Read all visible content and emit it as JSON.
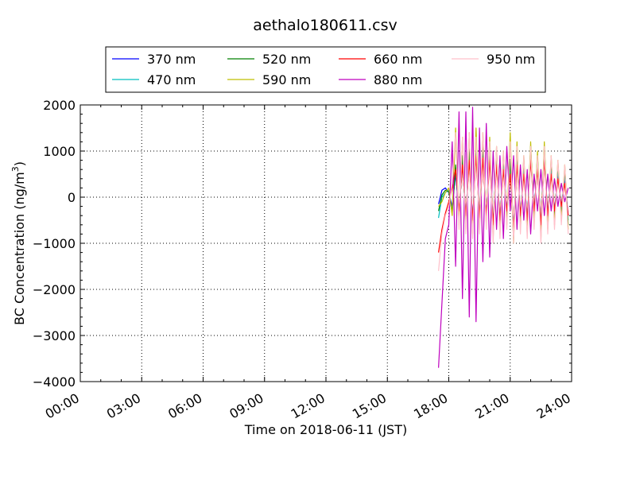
{
  "chart_data": {
    "type": "line",
    "title": "aethalo180611.csv",
    "xlabel": "Time on 2018-06-11 (JST)",
    "ylabel": "BC Concentration (ng/m³)",
    "ylabel_main": "BC Concentration (ng/m",
    "ylabel_sup": "3",
    "ylabel_end": ")",
    "xlim": [
      "2018-06-11 00:00",
      "2018-06-12 00:00"
    ],
    "ylim": [
      -4000,
      2000
    ],
    "x_ticks": [
      {
        "time": "2018-06-11 00:00",
        "label": "00:00"
      },
      {
        "time": "2018-06-11 03:00",
        "label": "03:00"
      },
      {
        "time": "2018-06-11 06:00",
        "label": "06:00"
      },
      {
        "time": "2018-06-11 09:00",
        "label": "09:00"
      },
      {
        "time": "2018-06-11 12:00",
        "label": "12:00"
      },
      {
        "time": "2018-06-11 15:00",
        "label": "15:00"
      },
      {
        "time": "2018-06-11 18:00",
        "label": "18:00"
      },
      {
        "time": "2018-06-11 21:00",
        "label": "21:00"
      },
      {
        "time": "2018-06-12 00:00",
        "label": "24:00"
      }
    ],
    "y_ticks": [
      {
        "value": 2000,
        "label": "2000"
      },
      {
        "value": 1000,
        "label": "1000"
      },
      {
        "value": 0,
        "label": "0"
      },
      {
        "value": -1000,
        "label": "−1000"
      },
      {
        "value": -2000,
        "label": "−2000"
      },
      {
        "value": -3000,
        "label": "−3000"
      },
      {
        "value": -4000,
        "label": "−4000"
      }
    ],
    "grid": true,
    "legend_position": "top-center",
    "series": [
      {
        "name": "370 nm",
        "color": "#0000ff",
        "x": [
          "2018-06-11 17:30",
          "2018-06-11 17:40",
          "2018-06-11 17:50",
          "2018-06-11 18:00",
          "2018-06-11 18:10",
          "2018-06-11 18:20",
          "2018-06-11 18:30",
          "2018-06-11 18:40",
          "2018-06-11 18:50",
          "2018-06-11 19:00",
          "2018-06-11 19:10",
          "2018-06-11 19:20",
          "2018-06-11 19:30",
          "2018-06-11 19:40",
          "2018-06-11 19:50",
          "2018-06-11 20:00",
          "2018-06-11 20:10",
          "2018-06-11 20:20",
          "2018-06-11 20:30",
          "2018-06-11 20:40",
          "2018-06-11 20:50",
          "2018-06-11 21:00",
          "2018-06-11 21:10",
          "2018-06-11 21:20",
          "2018-06-11 21:30",
          "2018-06-11 21:40",
          "2018-06-11 21:50",
          "2018-06-11 22:00",
          "2018-06-11 22:10",
          "2018-06-11 22:20",
          "2018-06-11 22:30",
          "2018-06-11 22:40",
          "2018-06-11 22:50",
          "2018-06-11 23:00",
          "2018-06-11 23:10",
          "2018-06-11 23:20",
          "2018-06-11 23:30",
          "2018-06-11 23:40",
          "2018-06-11 23:50"
        ],
        "values": [
          -150,
          150,
          200,
          100,
          -200,
          500,
          -300,
          700,
          -400,
          900,
          -500,
          1000,
          -450,
          950,
          -400,
          900,
          -600,
          800,
          -500,
          700,
          -300,
          600,
          -700,
          800,
          -400,
          600,
          -500,
          900,
          -300,
          700,
          -600,
          900,
          -400,
          600,
          -300,
          500,
          -200,
          400,
          -400
        ]
      },
      {
        "name": "470 nm",
        "color": "#00bfbf",
        "x": [
          "2018-06-11 17:30",
          "2018-06-11 17:40",
          "2018-06-11 17:50",
          "2018-06-11 18:00",
          "2018-06-11 18:10",
          "2018-06-11 18:20",
          "2018-06-11 18:30",
          "2018-06-11 18:40",
          "2018-06-11 18:50",
          "2018-06-11 19:00",
          "2018-06-11 19:10",
          "2018-06-11 19:20",
          "2018-06-11 19:30",
          "2018-06-11 19:40",
          "2018-06-11 19:50",
          "2018-06-11 20:00",
          "2018-06-11 20:10",
          "2018-06-11 20:20",
          "2018-06-11 20:30",
          "2018-06-11 20:40",
          "2018-06-11 20:50",
          "2018-06-11 21:00",
          "2018-06-11 21:10",
          "2018-06-11 21:20",
          "2018-06-11 21:30",
          "2018-06-11 21:40",
          "2018-06-11 21:50",
          "2018-06-11 22:00",
          "2018-06-11 22:10",
          "2018-06-11 22:20",
          "2018-06-11 22:30",
          "2018-06-11 22:40",
          "2018-06-11 22:50",
          "2018-06-11 23:00",
          "2018-06-11 23:10",
          "2018-06-11 23:20",
          "2018-06-11 23:30",
          "2018-06-11 23:40",
          "2018-06-11 23:50"
        ],
        "values": [
          -450,
          0,
          100,
          150,
          -300,
          600,
          -400,
          800,
          -500,
          950,
          -600,
          1100,
          -500,
          1000,
          -450,
          1000,
          -700,
          900,
          -600,
          800,
          -400,
          700,
          -800,
          900,
          -500,
          700,
          -600,
          1000,
          -400,
          800,
          -700,
          1000,
          -500,
          700,
          -400,
          600,
          -300,
          500,
          -500
        ]
      },
      {
        "name": "520 nm",
        "color": "#008000",
        "x": [
          "2018-06-11 17:30",
          "2018-06-11 17:40",
          "2018-06-11 17:50",
          "2018-06-11 18:00",
          "2018-06-11 18:10",
          "2018-06-11 18:20",
          "2018-06-11 18:30",
          "2018-06-11 18:40",
          "2018-06-11 18:50",
          "2018-06-11 19:00",
          "2018-06-11 19:10",
          "2018-06-11 19:20",
          "2018-06-11 19:30",
          "2018-06-11 19:40",
          "2018-06-11 19:50",
          "2018-06-11 20:00",
          "2018-06-11 20:10",
          "2018-06-11 20:20",
          "2018-06-11 20:30",
          "2018-06-11 20:40",
          "2018-06-11 20:50",
          "2018-06-11 21:00",
          "2018-06-11 21:10",
          "2018-06-11 21:20",
          "2018-06-11 21:30",
          "2018-06-11 21:40",
          "2018-06-11 21:50",
          "2018-06-11 22:00",
          "2018-06-11 22:10",
          "2018-06-11 22:20",
          "2018-06-11 22:30",
          "2018-06-11 22:40",
          "2018-06-11 22:50",
          "2018-06-11 23:00",
          "2018-06-11 23:10",
          "2018-06-11 23:20",
          "2018-06-11 23:30",
          "2018-06-11 23:40",
          "2018-06-11 23:50"
        ],
        "values": [
          -300,
          50,
          150,
          120,
          -350,
          700,
          -500,
          900,
          -600,
          1050,
          -700,
          1200,
          -600,
          1100,
          -500,
          1100,
          -800,
          1000,
          -700,
          900,
          -500,
          800,
          -900,
          1000,
          -600,
          800,
          -700,
          1100,
          -500,
          900,
          -800,
          1100,
          -600,
          800,
          -500,
          700,
          -400,
          600,
          -600
        ]
      },
      {
        "name": "590 nm",
        "color": "#bfbf00",
        "x": [
          "2018-06-11 17:30",
          "2018-06-11 17:40",
          "2018-06-11 17:50",
          "2018-06-11 18:00",
          "2018-06-11 18:10",
          "2018-06-11 18:20",
          "2018-06-11 18:30",
          "2018-06-11 18:40",
          "2018-06-11 18:50",
          "2018-06-11 19:00",
          "2018-06-11 19:10",
          "2018-06-11 19:20",
          "2018-06-11 19:30",
          "2018-06-11 19:40",
          "2018-06-11 19:50",
          "2018-06-11 20:00",
          "2018-06-11 20:10",
          "2018-06-11 20:20",
          "2018-06-11 20:30",
          "2018-06-11 20:40",
          "2018-06-11 20:50",
          "2018-06-11 21:00",
          "2018-06-11 21:10",
          "2018-06-11 21:20",
          "2018-06-11 21:30",
          "2018-06-11 21:40",
          "2018-06-11 21:50",
          "2018-06-11 22:00",
          "2018-06-11 22:10",
          "2018-06-11 22:20",
          "2018-06-11 22:30",
          "2018-06-11 22:40",
          "2018-06-11 22:50",
          "2018-06-11 23:00",
          "2018-06-11 23:10",
          "2018-06-11 23:20",
          "2018-06-11 23:30",
          "2018-06-11 23:40",
          "2018-06-11 23:50"
        ],
        "values": [
          -200,
          -100,
          100,
          200,
          -400,
          1500,
          -600,
          1300,
          -700,
          1400,
          -800,
          1500,
          -700,
          1400,
          -600,
          1300,
          -900,
          1100,
          -800,
          1000,
          -600,
          1400,
          -1000,
          1200,
          -700,
          900,
          -800,
          1200,
          -600,
          1000,
          -900,
          1200,
          -700,
          900,
          -600,
          800,
          -500,
          700,
          -700
        ]
      },
      {
        "name": "660 nm",
        "color": "#ff0000",
        "x": [
          "2018-06-11 17:30",
          "2018-06-11 17:40",
          "2018-06-11 17:50",
          "2018-06-11 18:00",
          "2018-06-11 18:10",
          "2018-06-11 18:20",
          "2018-06-11 18:30",
          "2018-06-11 18:40",
          "2018-06-11 18:50",
          "2018-06-11 19:00",
          "2018-06-11 19:10",
          "2018-06-11 19:20",
          "2018-06-11 19:30",
          "2018-06-11 19:40",
          "2018-06-11 19:50",
          "2018-06-11 20:00",
          "2018-06-11 20:10",
          "2018-06-11 20:20",
          "2018-06-11 20:30",
          "2018-06-11 20:40",
          "2018-06-11 20:50",
          "2018-06-11 21:00",
          "2018-06-11 21:10",
          "2018-06-11 21:20",
          "2018-06-11 21:30",
          "2018-06-11 21:40",
          "2018-06-11 21:50",
          "2018-06-11 22:00",
          "2018-06-11 22:10",
          "2018-06-11 22:20",
          "2018-06-11 22:30",
          "2018-06-11 22:40",
          "2018-06-11 22:50",
          "2018-06-11 23:00",
          "2018-06-11 23:10",
          "2018-06-11 23:20",
          "2018-06-11 23:30",
          "2018-06-11 23:40",
          "2018-06-11 23:50"
        ],
        "values": [
          -1200,
          -700,
          -350,
          -100,
          200,
          600,
          -300,
          700,
          -400,
          800,
          -500,
          900,
          -450,
          850,
          -400,
          800,
          -600,
          700,
          -500,
          600,
          -300,
          500,
          -700,
          700,
          -400,
          500,
          -500,
          800,
          -300,
          600,
          -600,
          800,
          -400,
          500,
          -300,
          400,
          -200,
          300,
          -400
        ]
      },
      {
        "name": "880 nm",
        "color": "#bf00bf",
        "x": [
          "2018-06-11 17:30",
          "2018-06-11 17:40",
          "2018-06-11 17:50",
          "2018-06-11 18:00",
          "2018-06-11 18:10",
          "2018-06-11 18:20",
          "2018-06-11 18:30",
          "2018-06-11 18:40",
          "2018-06-11 18:50",
          "2018-06-11 19:00",
          "2018-06-11 19:10",
          "2018-06-11 19:20",
          "2018-06-11 19:30",
          "2018-06-11 19:40",
          "2018-06-11 19:50",
          "2018-06-11 20:00",
          "2018-06-11 20:10",
          "2018-06-11 20:20",
          "2018-06-11 20:30",
          "2018-06-11 20:40",
          "2018-06-11 20:50",
          "2018-06-11 21:00",
          "2018-06-11 21:10",
          "2018-06-11 21:20",
          "2018-06-11 21:30",
          "2018-06-11 21:40",
          "2018-06-11 21:50",
          "2018-06-11 22:00",
          "2018-06-11 22:10",
          "2018-06-11 22:20",
          "2018-06-11 22:30",
          "2018-06-11 22:40",
          "2018-06-11 22:50",
          "2018-06-11 23:00",
          "2018-06-11 23:10",
          "2018-06-11 23:20",
          "2018-06-11 23:30",
          "2018-06-11 23:40",
          "2018-06-11 23:50"
        ],
        "values": [
          -3700,
          -2300,
          -900,
          -600,
          1200,
          -1500,
          1850,
          -2200,
          1850,
          -2600,
          1950,
          -2700,
          1500,
          -1400,
          1600,
          -1300,
          1000,
          -700,
          900,
          -900,
          1100,
          -300,
          900,
          -700,
          700,
          -500,
          600,
          -800,
          500,
          -300,
          600,
          -400,
          500,
          -300,
          400,
          -200,
          300,
          -100,
          200
        ]
      },
      {
        "name": "950 nm",
        "color": "#ffc0cb",
        "x": [
          "2018-06-11 17:30",
          "2018-06-11 17:40",
          "2018-06-11 17:50",
          "2018-06-11 18:00",
          "2018-06-11 18:10",
          "2018-06-11 18:20",
          "2018-06-11 18:30",
          "2018-06-11 18:40",
          "2018-06-11 18:50",
          "2018-06-11 19:00",
          "2018-06-11 19:10",
          "2018-06-11 19:20",
          "2018-06-11 19:30",
          "2018-06-11 19:40",
          "2018-06-11 19:50",
          "2018-06-11 20:00",
          "2018-06-11 20:10",
          "2018-06-11 20:20",
          "2018-06-11 20:30",
          "2018-06-11 20:40",
          "2018-06-11 20:50",
          "2018-06-11 21:00",
          "2018-06-11 21:10",
          "2018-06-11 21:20",
          "2018-06-11 21:30",
          "2018-06-11 21:40",
          "2018-06-11 21:50",
          "2018-06-11 22:00",
          "2018-06-11 22:10",
          "2018-06-11 22:20",
          "2018-06-11 22:30",
          "2018-06-11 22:40",
          "2018-06-11 22:50",
          "2018-06-11 23:00",
          "2018-06-11 23:10",
          "2018-06-11 23:20",
          "2018-06-11 23:30",
          "2018-06-11 23:40",
          "2018-06-11 23:50"
        ],
        "values": [
          -1600,
          -800,
          -400,
          -200,
          300,
          1400,
          -700,
          1300,
          -800,
          1400,
          -900,
          1300,
          -800,
          1400,
          -700,
          1200,
          -1000,
          1100,
          -900,
          1000,
          -700,
          1200,
          -1000,
          1100,
          -800,
          900,
          -900,
          1100,
          -700,
          900,
          -1000,
          1100,
          -800,
          900,
          -700,
          800,
          -600,
          700,
          -800
        ]
      }
    ]
  }
}
